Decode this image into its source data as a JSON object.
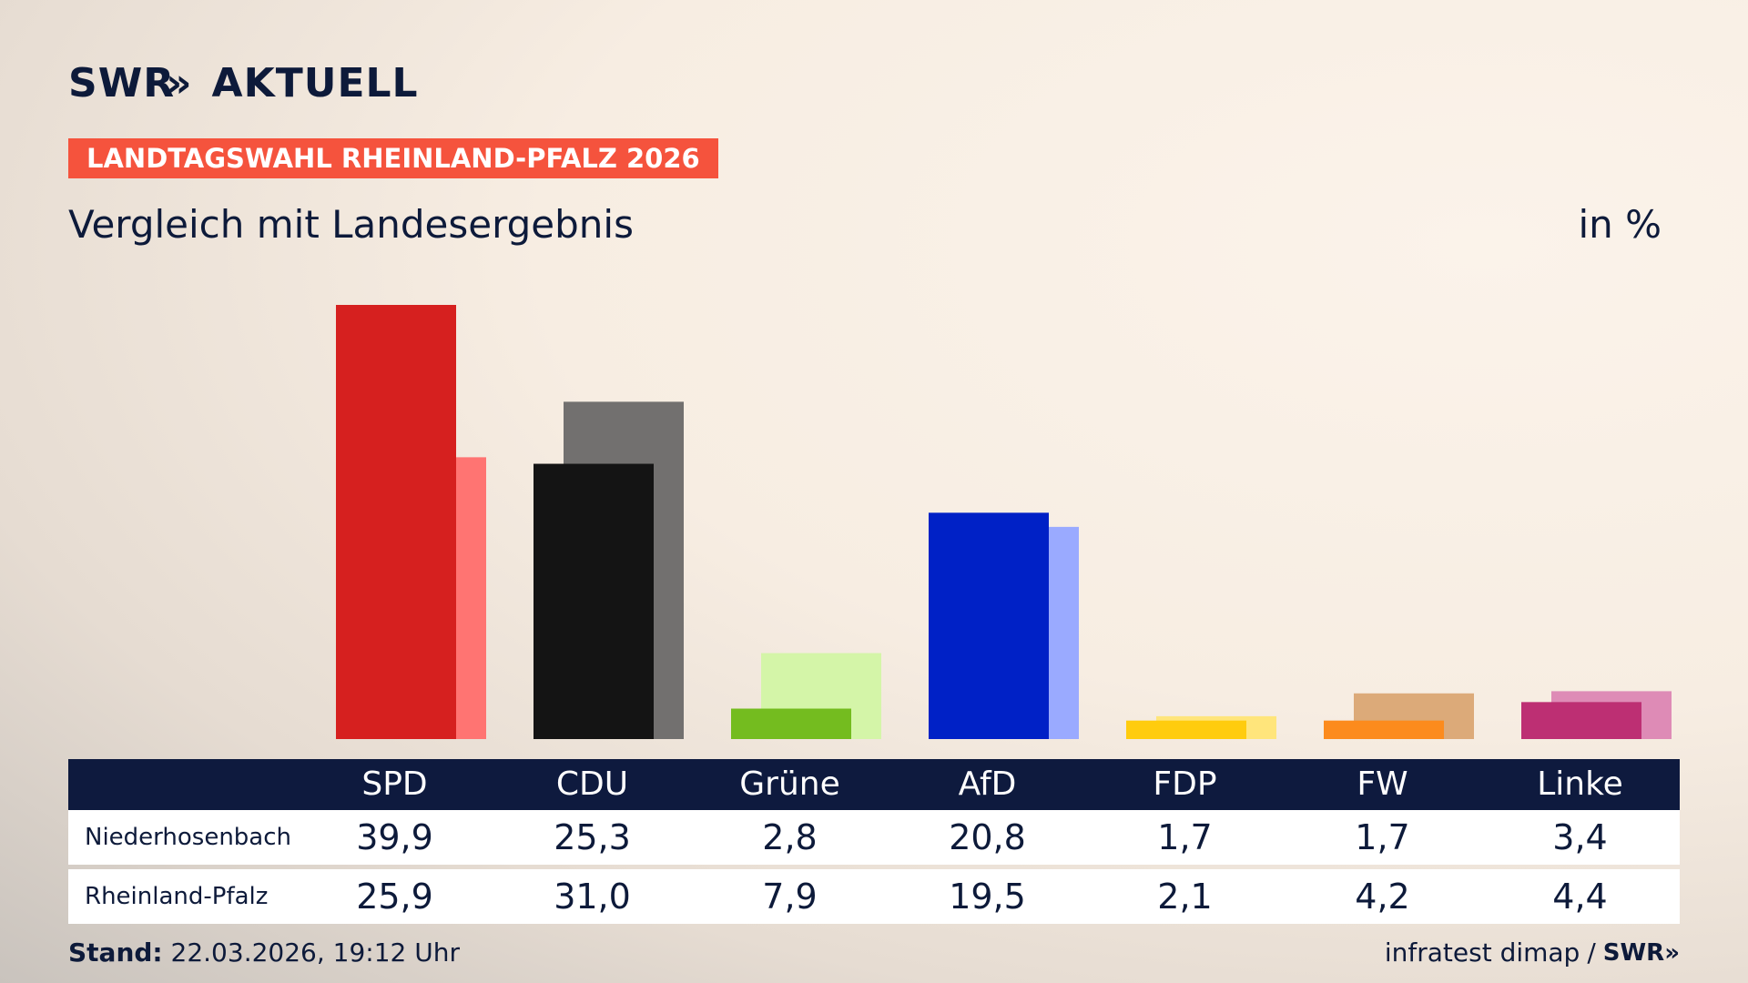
{
  "brand": {
    "name": "SWR",
    "chevrons": "»",
    "section": "AKTUELL"
  },
  "banner": "LANDTAGSWAHL RHEINLAND-PFALZ 2026",
  "subtitle": "Vergleich mit Landesergebnis",
  "unit": "in %",
  "table": {
    "rows": [
      {
        "label": "Niederhosenbach",
        "values": [
          "39,9",
          "25,3",
          "2,8",
          "20,8",
          "1,7",
          "1,7",
          "3,4"
        ]
      },
      {
        "label": "Rheinland-Pfalz",
        "values": [
          "25,9",
          "31,0",
          "7,9",
          "19,5",
          "2,1",
          "4,2",
          "4,4"
        ]
      }
    ]
  },
  "footer": {
    "stand_label": "Stand:",
    "stand_value": "22.03.2026, 19:12 Uhr",
    "source": "infratest dimap",
    "separator": "/",
    "source_brand": "SWR»"
  },
  "chart_data": {
    "type": "bar",
    "categories": [
      "SPD",
      "CDU",
      "Grüne",
      "AfD",
      "FDP",
      "FW",
      "Linke"
    ],
    "series": [
      {
        "name": "Niederhosenbach",
        "values": [
          39.9,
          25.3,
          2.8,
          20.8,
          1.7,
          1.7,
          3.4
        ]
      },
      {
        "name": "Rheinland-Pfalz",
        "values": [
          25.9,
          31.0,
          7.9,
          19.5,
          2.1,
          4.2,
          4.4
        ]
      }
    ],
    "colors": {
      "primary": [
        "#d6201f",
        "#141414",
        "#74bc1f",
        "#0021c6",
        "#ffcc0e",
        "#fc8b1d",
        "#bd2f73"
      ],
      "secondary": [
        "#ff7472",
        "#72706f",
        "#d4f5a8",
        "#9aaaff",
        "#ffe57b",
        "#dcaa79",
        "#de8bb6"
      ]
    },
    "ylim": [
      0,
      40
    ],
    "grid": false
  }
}
